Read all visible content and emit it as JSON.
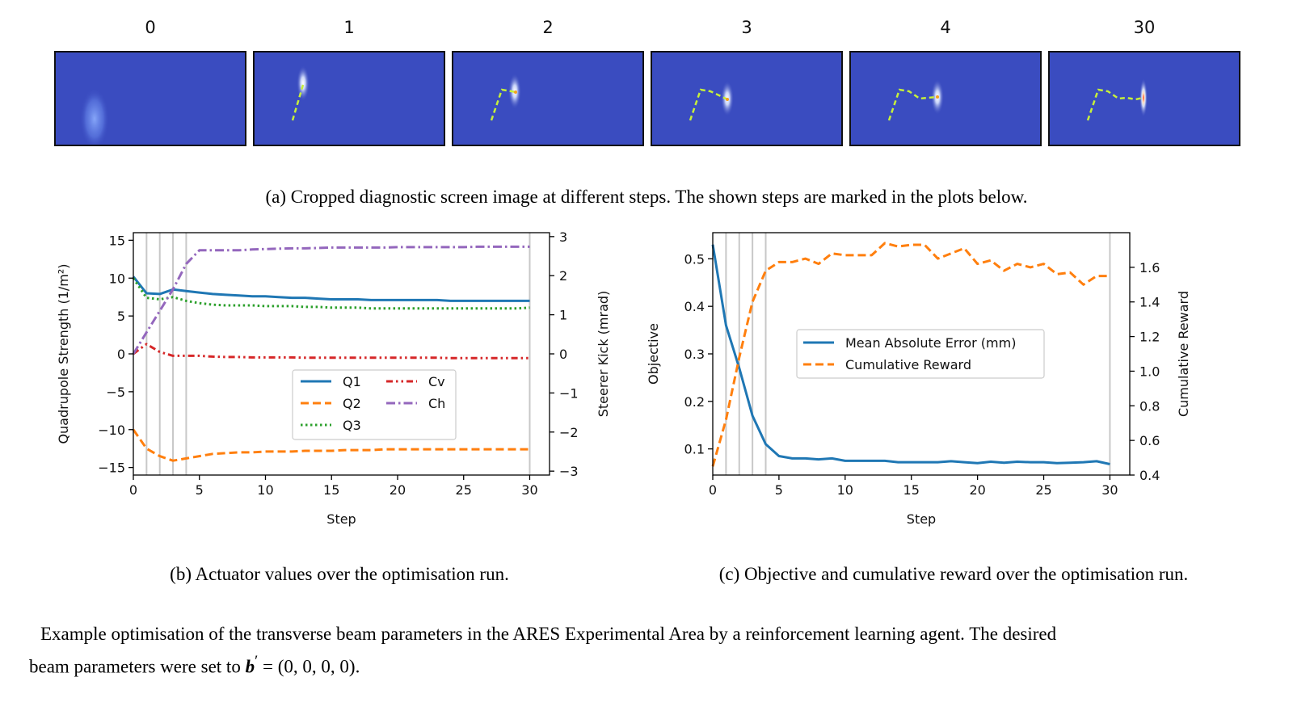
{
  "screens": {
    "steps": [
      "0",
      "1",
      "2",
      "3",
      "4",
      "30"
    ],
    "background_color": "#3a4cc0",
    "trajectory_color": "#c6f03a"
  },
  "captions": {
    "a": "(a) Cropped diagnostic screen image at different steps. The shown steps are marked in the plots below.",
    "b": "(b) Actuator values over the optimisation run.",
    "c": "(c) Objective and cumulative reward over the optimisation run.",
    "figure_line1": "Example optimisation of the transverse beam parameters in the ARES Experimental Area by a reinforcement learning agent. The desired",
    "figure_line2_prefix": "beam parameters were set to ",
    "figure_line2_math": "b",
    "figure_line2_suffix": " = (0, 0, 0, 0)."
  },
  "chart_data": [
    {
      "type": "line",
      "x": [
        0,
        1,
        2,
        3,
        4,
        5,
        6,
        7,
        8,
        9,
        10,
        11,
        12,
        13,
        14,
        15,
        16,
        17,
        18,
        19,
        20,
        21,
        22,
        23,
        24,
        25,
        26,
        27,
        28,
        29,
        30
      ],
      "xlabel": "Step",
      "ylabel": "Quadrupole Strength (1/m²)",
      "ylabel_right": "Steerer Kick (mrad)",
      "xlim": [
        0,
        31.5
      ],
      "ylim": [
        -16,
        16
      ],
      "ylim_right": [
        -3.1,
        3.1
      ],
      "xticks": [
        "0",
        "5",
        "10",
        "15",
        "20",
        "25",
        "30"
      ],
      "yticks": [
        "15",
        "10",
        "5",
        "0",
        "−5",
        "−10",
        "−15"
      ],
      "yticks_right": [
        "3",
        "2",
        "1",
        "0",
        "−1",
        "−2",
        "−3"
      ],
      "marked_steps": [
        1,
        2,
        3,
        4,
        30
      ],
      "legend_position": "lower-center",
      "series": [
        {
          "name": "Q1",
          "axis": "left",
          "style": "solid",
          "color": "#1f77b4",
          "values": [
            10.2,
            8.0,
            7.9,
            8.5,
            8.3,
            8.1,
            7.9,
            7.8,
            7.7,
            7.6,
            7.6,
            7.5,
            7.4,
            7.4,
            7.3,
            7.2,
            7.2,
            7.2,
            7.1,
            7.1,
            7.1,
            7.1,
            7.1,
            7.1,
            7.0,
            7.0,
            7.0,
            7.0,
            7.0,
            7.0,
            7.0
          ]
        },
        {
          "name": "Q2",
          "axis": "left",
          "style": "dashed",
          "color": "#ff7f0e",
          "values": [
            -10.0,
            -12.5,
            -13.5,
            -14.1,
            -13.8,
            -13.5,
            -13.2,
            -13.1,
            -13.0,
            -13.0,
            -12.9,
            -12.9,
            -12.9,
            -12.8,
            -12.8,
            -12.8,
            -12.7,
            -12.7,
            -12.7,
            -12.6,
            -12.6,
            -12.6,
            -12.6,
            -12.6,
            -12.6,
            -12.6,
            -12.6,
            -12.6,
            -12.6,
            -12.6,
            -12.6
          ]
        },
        {
          "name": "Q3",
          "axis": "left",
          "style": "dotted",
          "color": "#2ca02c",
          "values": [
            10.0,
            7.4,
            7.2,
            7.5,
            7.0,
            6.7,
            6.5,
            6.4,
            6.4,
            6.4,
            6.3,
            6.3,
            6.3,
            6.2,
            6.2,
            6.1,
            6.1,
            6.1,
            6.0,
            6.0,
            6.0,
            6.0,
            6.0,
            6.0,
            6.0,
            6.0,
            6.0,
            6.0,
            6.0,
            6.0,
            6.1
          ]
        },
        {
          "name": "Cv",
          "axis": "right",
          "style": "dashdotdot",
          "color": "#d62728",
          "values": [
            0.0,
            0.25,
            0.05,
            -0.05,
            -0.05,
            -0.05,
            -0.07,
            -0.08,
            -0.08,
            -0.09,
            -0.09,
            -0.09,
            -0.09,
            -0.1,
            -0.1,
            -0.1,
            -0.1,
            -0.1,
            -0.1,
            -0.1,
            -0.1,
            -0.1,
            -0.1,
            -0.1,
            -0.11,
            -0.11,
            -0.11,
            -0.11,
            -0.11,
            -0.11,
            -0.11
          ]
        },
        {
          "name": "Ch",
          "axis": "right",
          "style": "dashdot",
          "color": "#9467bd",
          "values": [
            0.0,
            0.55,
            1.1,
            1.65,
            2.3,
            2.65,
            2.65,
            2.65,
            2.65,
            2.67,
            2.68,
            2.69,
            2.7,
            2.7,
            2.71,
            2.72,
            2.72,
            2.72,
            2.72,
            2.72,
            2.73,
            2.73,
            2.73,
            2.73,
            2.73,
            2.73,
            2.74,
            2.74,
            2.74,
            2.74,
            2.74
          ]
        }
      ]
    },
    {
      "type": "line",
      "x": [
        0,
        1,
        2,
        3,
        4,
        5,
        6,
        7,
        8,
        9,
        10,
        11,
        12,
        13,
        14,
        15,
        16,
        17,
        18,
        19,
        20,
        21,
        22,
        23,
        24,
        25,
        26,
        27,
        28,
        29,
        30
      ],
      "xlabel": "Step",
      "ylabel": "Objective",
      "ylabel_right": "Cumulative Reward",
      "xlim": [
        0,
        31.5
      ],
      "ylim": [
        0.045,
        0.555
      ],
      "ylim_right": [
        0.4,
        1.8
      ],
      "xticks": [
        "0",
        "5",
        "10",
        "15",
        "20",
        "25",
        "30"
      ],
      "yticks": [
        "0.5",
        "0.4",
        "0.3",
        "0.2",
        "0.1"
      ],
      "yticks_right": [
        "1.6",
        "1.4",
        "1.2",
        "1.0",
        "0.8",
        "0.6",
        "0.4"
      ],
      "marked_steps": [
        1,
        2,
        3,
        4,
        30
      ],
      "legend_position": "center-right",
      "series": [
        {
          "name": "Mean Absolute Error (mm)",
          "axis": "left",
          "style": "solid",
          "color": "#1f77b4",
          "values": [
            0.53,
            0.36,
            0.27,
            0.17,
            0.11,
            0.085,
            0.08,
            0.08,
            0.078,
            0.08,
            0.075,
            0.075,
            0.075,
            0.075,
            0.072,
            0.072,
            0.072,
            0.072,
            0.074,
            0.072,
            0.07,
            0.073,
            0.071,
            0.073,
            0.072,
            0.072,
            0.07,
            0.071,
            0.072,
            0.074,
            0.068
          ]
        },
        {
          "name": "Cumulative Reward",
          "axis": "right",
          "style": "dashed",
          "color": "#ff7f0e",
          "values": [
            0.45,
            0.72,
            1.08,
            1.4,
            1.58,
            1.63,
            1.63,
            1.65,
            1.62,
            1.68,
            1.67,
            1.67,
            1.67,
            1.74,
            1.72,
            1.73,
            1.73,
            1.65,
            1.68,
            1.71,
            1.62,
            1.64,
            1.58,
            1.62,
            1.6,
            1.62,
            1.56,
            1.57,
            1.5,
            1.55,
            1.55
          ]
        }
      ]
    }
  ]
}
